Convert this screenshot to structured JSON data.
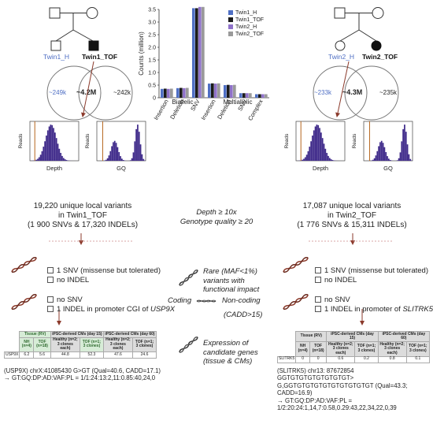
{
  "pedigree_left": {
    "label_a": "Twin1_H",
    "label_b": "Twin1_TOF"
  },
  "pedigree_right": {
    "label_a": "Twin2_H",
    "label_b": "Twin2_TOF"
  },
  "venn_left": {
    "left": "~249k",
    "center": "~4.2M",
    "right": "~242k"
  },
  "venn_right": {
    "left": "~233k",
    "center": "~4.3M",
    "right": "~235k"
  },
  "chart_data": {
    "type": "bar",
    "ylabel": "Counts (million)",
    "ylim": [
      0,
      3.5
    ],
    "yticks": [
      "0",
      "0.5",
      "1.0",
      "1.5",
      "2.0",
      "2.5",
      "3.0",
      "3.5"
    ],
    "groups": [
      "Biallelic",
      "Multiallelic"
    ],
    "categories": [
      "Insertion",
      "Deletion",
      "SNV",
      "Insertion",
      "Deletion",
      "SNV",
      "Complex"
    ],
    "series": [
      {
        "name": "Twin1_H",
        "color": "#4f6fc4",
        "values": [
          0.35,
          0.38,
          3.55,
          0.56,
          0.5,
          0.18,
          0.14
        ]
      },
      {
        "name": "Twin1_TOF",
        "color": "#1a1a1a",
        "values": [
          0.36,
          0.39,
          3.55,
          0.57,
          0.51,
          0.18,
          0.14
        ]
      },
      {
        "name": "Twin2_H",
        "color": "#8f72c9",
        "values": [
          0.35,
          0.38,
          3.6,
          0.56,
          0.5,
          0.18,
          0.14
        ]
      },
      {
        "name": "Twin2_TOF",
        "color": "#9a9a9a",
        "values": [
          0.36,
          0.39,
          3.6,
          0.57,
          0.51,
          0.18,
          0.14
        ]
      }
    ]
  },
  "hist_labels": {
    "x1": "Depth",
    "x2": "GQ",
    "y": "Reads"
  },
  "summary_left": {
    "line1": "19,220 unique local variants",
    "line2": "in Twin1_TOF",
    "line3": "(1 900 SNVs & 17,320 INDELs)"
  },
  "summary_right": {
    "line1": "17,087 unique local variants",
    "line2": "in Twin2_TOF",
    "line3": "(1 776 SNVs & 15,311 INDELs)"
  },
  "filter": {
    "line1": "Depth ≥ 10x",
    "line2": "Genotype quality ≥ 20"
  },
  "rare": {
    "line1": "Rare (MAF<1%)",
    "line2": "variants with",
    "line3": "functional impact"
  },
  "coding": {
    "coding": "Coding",
    "noncoding": "Non-coding",
    "cadd": "(CADD>15)"
  },
  "left_results": {
    "coding_1": "1 SNV (missense but tolerated)",
    "coding_2": "no INDEL",
    "noncoding_1": "no SNV",
    "noncoding_2_prefix": "1 INDEL in promoter CGI of ",
    "noncoding_2_gene": "USP9X"
  },
  "right_results": {
    "coding_1": "1 SNV (missense but tolerated)",
    "coding_2": "no INDEL",
    "noncoding_1": "no SNV",
    "noncoding_2_prefix": "1 INDEL in promoter of ",
    "noncoding_2_gene": "SLITRK5"
  },
  "expression": {
    "line1": "Expression of",
    "line2": "candidate genes",
    "line3": "(tissue & CMs)"
  },
  "table_left": {
    "h_tissue": "Tissue (RV)",
    "h_d15": "iPSC-derived CMs (day 15)",
    "h_d60": "iPSC-derived CMs (day 60)",
    "c_nh": "NH (n=4)",
    "c_tof": "TOF (n=18)",
    "c_h15": "Healthy (n=2; 3 clones each)",
    "c_tof15": "TOF (n=1; 3 clones)",
    "c_h60": "Healthy (n=2; 3 clones each)",
    "c_tof60": "TOF (n=1; 3 clones)",
    "gene": "USP9X",
    "v1": "6.2",
    "v2": "5.6",
    "v3": "44.8",
    "v4": "52.3",
    "v5": "47.6",
    "v6": "24.6"
  },
  "table_right": {
    "h_tissue": "Tissue (RV)",
    "h_d15": "iPSC-derived CMs (day 15)",
    "h_d60": "iPSC-derived CMs (day 60)",
    "c_nh": "NH (n=4)",
    "c_tof": "TOF (n=18)",
    "c_h15": "Healthy (n=2; 3 clones each)",
    "c_tof15": "TOF (n=1; 3 clones)",
    "c_h60": "Healthy (n=2; 3 clones each)",
    "c_tof60": "TOF (n=1; 3 clones)",
    "gene": "SLITRK5",
    "v1": "0",
    "v2": "0",
    "v3": "0.6",
    "v4": "0.2",
    "v5": "0.8",
    "v6": "0.1"
  },
  "variant_left": {
    "line1": "(USP9X) chrX:41085430 G>GT (Qual=40.6, CADD=17.1)",
    "line2": "→ GT:GQ:DP:AD:VAF:PL = 1/1:24:13:2,11:0.85:40,24,0"
  },
  "variant_right": {
    "line1": "(SLITRK5) chr13: 87672854 GGTGTGTGTGTGTGTGT>",
    "line2": "G,GGTGTGTGTGTGTGTGTGTGT (Qual=43.3; CADD=16.9)",
    "line3": "→ GT:GQ:DP:AD:VAF:PL =",
    "line4": "1/2:20:24:1,14,7:0.58,0.29:43,22,34,22,0,39"
  }
}
